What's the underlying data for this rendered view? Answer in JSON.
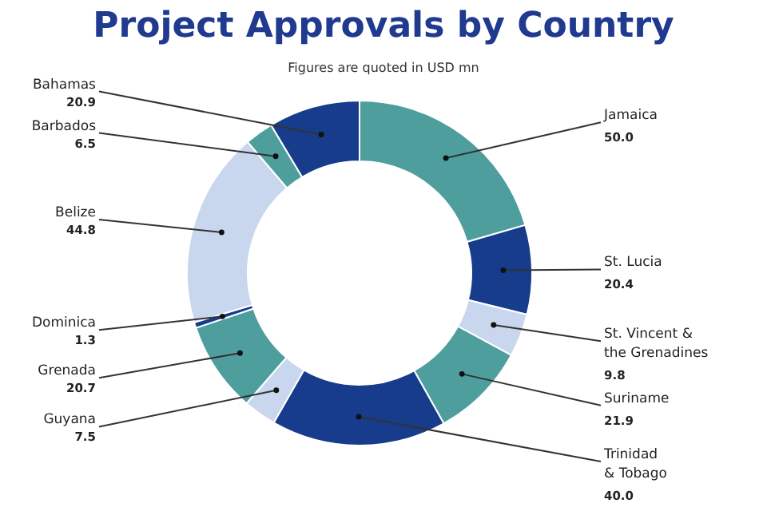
{
  "chart_data": {
    "type": "donut",
    "title": "Project Approvals by Country",
    "subtitle": "Figures are quoted in USD mn",
    "categories": [
      "Jamaica",
      "St. Lucia",
      "St. Vincent & the Grenadines",
      "Suriname",
      "Trinidad & Tobago",
      "Guyana",
      "Grenada",
      "Dominica",
      "Belize",
      "Barbados",
      "Bahamas"
    ],
    "values": [
      50.0,
      20.4,
      9.8,
      21.9,
      40.0,
      7.5,
      20.7,
      1.3,
      44.8,
      6.5,
      20.9
    ],
    "value_labels": [
      "50.0",
      "20.4",
      "9.8",
      "21.9",
      "40.0",
      "7.5",
      "20.7",
      "1.3",
      "44.8",
      "6.5",
      "20.9"
    ],
    "colors": [
      "#4f9e9e",
      "#173c8c",
      "#c8d6ee",
      "#4f9e9e",
      "#173c8c",
      "#c8d6ee",
      "#4f9e9e",
      "#173c8c",
      "#c8d6ee",
      "#4f9e9e",
      "#173c8c"
    ]
  }
}
